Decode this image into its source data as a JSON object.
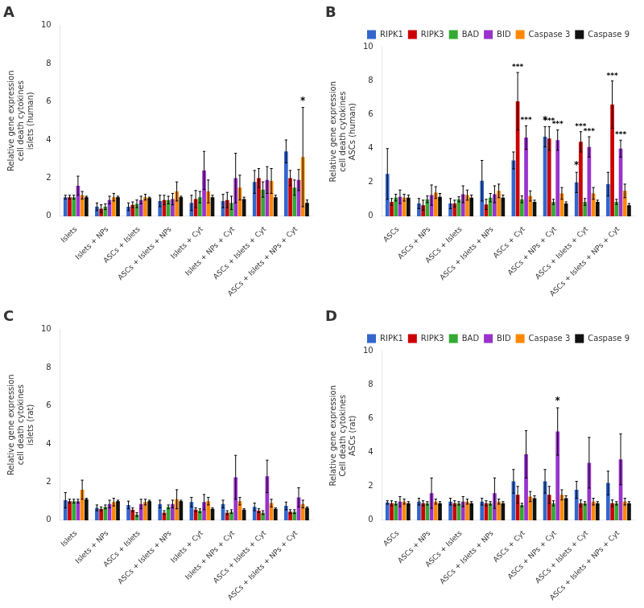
{
  "chart_data": [
    {
      "type": "bar",
      "title": "A",
      "ylabel": "Relative gene expression\ncell death cytokines\nislets (human)",
      "ylim": [
        0,
        10
      ],
      "yticks": [
        0,
        2,
        4,
        6,
        8,
        10
      ],
      "grid": false,
      "categories": [
        "Islets",
        "Islets + NPs",
        "ASCs + Islets",
        "ASCs + Islets + NPs",
        "Islets + Cyt",
        "Islets + NPs + Cyt",
        "ASCs + Islets + Cyt",
        "ASCs + Islets + NPs + Cyt"
      ],
      "series": [
        {
          "name": "RIPK1",
          "color": "#3366cc",
          "values": [
            1.0,
            0.5,
            0.5,
            0.8,
            0.7,
            0.8,
            1.8,
            3.4
          ],
          "errors": [
            0.1,
            0.2,
            0.2,
            0.3,
            0.4,
            0.35,
            0.6,
            0.6
          ]
        },
        {
          "name": "RIPK3",
          "color": "#cc0000",
          "values": [
            1.0,
            0.4,
            0.6,
            0.85,
            0.9,
            0.85,
            2.0,
            2.0
          ],
          "errors": [
            0.1,
            0.2,
            0.15,
            0.25,
            0.45,
            0.4,
            0.5,
            0.4
          ]
        },
        {
          "name": "BAD",
          "color": "#33aa33",
          "values": [
            1.0,
            0.5,
            0.65,
            0.85,
            1.0,
            0.7,
            1.4,
            1.5
          ],
          "errors": [
            0.1,
            0.15,
            0.2,
            0.2,
            0.3,
            0.35,
            0.4,
            0.4
          ]
        },
        {
          "name": "BID",
          "color": "#9933cc",
          "values": [
            1.6,
            0.85,
            0.85,
            0.9,
            2.4,
            2.0,
            1.9,
            1.9
          ],
          "errors": [
            0.5,
            0.2,
            0.2,
            0.3,
            1.0,
            1.3,
            0.7,
            0.55
          ]
        },
        {
          "name": "Caspase 3",
          "color": "#ff8800",
          "values": [
            1.1,
            1.0,
            1.0,
            1.3,
            1.3,
            1.5,
            1.85,
            3.1
          ],
          "errors": [
            0.2,
            0.2,
            0.15,
            0.5,
            0.6,
            0.65,
            0.65,
            2.6
          ]
        },
        {
          "name": "Caspase 9",
          "color": "#111111",
          "values": [
            1.0,
            1.0,
            0.95,
            1.0,
            1.0,
            0.9,
            1.0,
            0.7
          ],
          "errors": [
            0.05,
            0.05,
            0.05,
            0.05,
            0.1,
            0.1,
            0.1,
            0.15
          ]
        }
      ],
      "annotations": [
        {
          "text": "*",
          "series": "Caspase 3",
          "category": "ASCs + Islets + NPs + Cyt"
        }
      ]
    },
    {
      "type": "bar",
      "title": "B",
      "ylabel": "Relative gene expression\ncell death cytokines\nASCs (human)",
      "ylim": [
        0,
        10
      ],
      "yticks": [
        0,
        2,
        4,
        6,
        8,
        10
      ],
      "grid": false,
      "legend": "upper right",
      "categories": [
        "ASCs",
        "ASCs + NPs",
        "ASCs + Islets",
        "ASCs + Islets + NPs",
        "ASCs + Cyt",
        "ASCs + NPs + Cyt",
        "ASCs + Islets + Cyt",
        "ASCs + Islets + NPs + Cyt"
      ],
      "series": [
        {
          "name": "RIPK1",
          "color": "#3366cc",
          "values": [
            2.5,
            0.75,
            0.75,
            2.1,
            3.3,
            4.7,
            2.0,
            1.9
          ],
          "errors": [
            1.5,
            0.3,
            0.3,
            1.2,
            0.5,
            0.6,
            0.6,
            0.7
          ]
        },
        {
          "name": "RIPK3",
          "color": "#cc0000",
          "values": [
            0.85,
            0.65,
            0.75,
            0.7,
            6.8,
            4.6,
            4.4,
            6.6
          ],
          "errors": [
            0.2,
            0.3,
            0.2,
            0.3,
            1.7,
            0.7,
            0.6,
            1.4
          ]
        },
        {
          "name": "BAD",
          "color": "#33aa33",
          "values": [
            1.1,
            1.0,
            1.0,
            1.1,
            1.0,
            0.85,
            0.85,
            0.85
          ],
          "errors": [
            0.2,
            0.2,
            0.15,
            0.25,
            0.2,
            0.15,
            0.2,
            0.15
          ]
        },
        {
          "name": "BID",
          "color": "#9933cc",
          "values": [
            1.15,
            1.25,
            1.3,
            1.3,
            4.65,
            4.5,
            4.1,
            4.0
          ],
          "errors": [
            0.4,
            0.6,
            0.5,
            0.5,
            0.7,
            0.6,
            0.6,
            0.5
          ]
        },
        {
          "name": "Caspase 3",
          "color": "#ff8800",
          "values": [
            1.1,
            1.4,
            1.25,
            1.5,
            1.2,
            1.35,
            1.35,
            1.5
          ],
          "errors": [
            0.2,
            0.35,
            0.3,
            0.4,
            0.3,
            0.35,
            0.35,
            0.4
          ]
        },
        {
          "name": "Caspase 9",
          "color": "#111111",
          "values": [
            1.1,
            1.15,
            1.1,
            1.1,
            0.85,
            0.75,
            0.85,
            0.65
          ],
          "errors": [
            0.15,
            0.2,
            0.15,
            0.15,
            0.1,
            0.1,
            0.1,
            0.1
          ]
        }
      ],
      "annotations": [
        {
          "text": "***",
          "series": "RIPK3",
          "category": "ASCs + Cyt"
        },
        {
          "text": "***",
          "series": "BID",
          "category": "ASCs + Cyt"
        },
        {
          "text": "*",
          "series": "RIPK1",
          "category": "ASCs + NPs + Cyt"
        },
        {
          "text": "***",
          "series": "RIPK3",
          "category": "ASCs + NPs + Cyt"
        },
        {
          "text": "***",
          "series": "BID",
          "category": "ASCs + NPs + Cyt"
        },
        {
          "text": "*",
          "series": "RIPK1",
          "category": "ASCs + Islets + Cyt"
        },
        {
          "text": "***",
          "series": "RIPK3",
          "category": "ASCs + Islets + Cyt"
        },
        {
          "text": "***",
          "series": "BID",
          "category": "ASCs + Islets + Cyt"
        },
        {
          "text": "***",
          "series": "RIPK3",
          "category": "ASCs + Islets + NPs + Cyt"
        },
        {
          "text": "***",
          "series": "BID",
          "category": "ASCs + Islets + NPs + Cyt"
        }
      ]
    },
    {
      "type": "bar",
      "title": "C",
      "ylabel": "Relative gene expression\ncell death cytokines\nislets (rat)",
      "ylim": [
        0,
        10
      ],
      "yticks": [
        0,
        2,
        4,
        6,
        8,
        10
      ],
      "grid": false,
      "categories": [
        "Islets",
        "Islets + NPs",
        "ASCs + Islets",
        "ASCs + Islets + NPs",
        "Islets + Cyt",
        "Islets + NPs + Cyt",
        "ASCs + Islets + Cyt",
        "ASCs + Islets + NPs + Cyt"
      ],
      "series": [
        {
          "name": "RIPK1",
          "color": "#3366cc",
          "values": [
            1.05,
            0.65,
            0.8,
            0.85,
            0.95,
            0.85,
            0.7,
            0.75
          ],
          "errors": [
            0.4,
            0.15,
            0.2,
            0.2,
            0.25,
            0.2,
            0.2,
            0.2
          ]
        },
        {
          "name": "RIPK3",
          "color": "#cc0000",
          "values": [
            1.0,
            0.6,
            0.55,
            0.4,
            0.55,
            0.4,
            0.5,
            0.45
          ],
          "errors": [
            0.1,
            0.1,
            0.1,
            0.1,
            0.1,
            0.1,
            0.1,
            0.1
          ]
        },
        {
          "name": "BAD",
          "color": "#33aa33",
          "values": [
            1.0,
            0.7,
            0.3,
            0.7,
            0.5,
            0.45,
            0.4,
            0.45
          ],
          "errors": [
            0.1,
            0.1,
            0.1,
            0.1,
            0.1,
            0.1,
            0.1,
            0.1
          ]
        },
        {
          "name": "BID",
          "color": "#9933cc",
          "values": [
            1.0,
            0.85,
            0.85,
            0.85,
            0.95,
            2.25,
            2.3,
            1.2
          ],
          "errors": [
            0.1,
            0.2,
            0.25,
            0.2,
            0.4,
            1.15,
            0.85,
            0.5
          ]
        },
        {
          "name": "Caspase 3",
          "color": "#ff8800",
          "values": [
            1.6,
            0.95,
            0.95,
            1.1,
            1.0,
            1.0,
            0.9,
            0.85
          ],
          "errors": [
            0.5,
            0.2,
            0.15,
            0.5,
            0.2,
            0.2,
            0.2,
            0.2
          ]
        },
        {
          "name": "Caspase 9",
          "color": "#111111",
          "values": [
            1.1,
            1.0,
            1.0,
            1.0,
            0.6,
            0.55,
            0.6,
            0.65
          ],
          "errors": [
            0.05,
            0.05,
            0.05,
            0.05,
            0.05,
            0.05,
            0.05,
            0.05
          ]
        }
      ]
    },
    {
      "type": "bar",
      "title": "D",
      "ylabel": "Relative gene expression\nCell death cytokines\nASCs (rat)",
      "ylim": [
        0,
        10
      ],
      "yticks": [
        0,
        2,
        4,
        6,
        8,
        10
      ],
      "grid": false,
      "legend": "upper right",
      "categories": [
        "ASCs",
        "ASCs + NPs",
        "ASCs + Islets",
        "ASCs + Islets + NPs",
        "ASCs + Cyt",
        "ASCs + NPs + Cyt",
        "ASCs + Islets + Cyt",
        "ASCs + Islets + NPs + Cyt"
      ],
      "series": [
        {
          "name": "RIPK1",
          "color": "#3366cc",
          "values": [
            1.05,
            1.1,
            1.1,
            1.1,
            2.3,
            2.3,
            1.8,
            2.2
          ],
          "errors": [
            0.1,
            0.2,
            0.2,
            0.2,
            0.7,
            0.7,
            0.5,
            0.7
          ]
        },
        {
          "name": "RIPK3",
          "color": "#cc0000",
          "values": [
            1.0,
            1.0,
            1.0,
            1.0,
            1.5,
            1.5,
            1.0,
            1.0
          ],
          "errors": [
            0.15,
            0.15,
            0.15,
            0.15,
            0.5,
            0.5,
            0.2,
            0.2
          ]
        },
        {
          "name": "BAD",
          "color": "#33aa33",
          "values": [
            1.0,
            1.0,
            1.0,
            1.0,
            0.9,
            1.0,
            1.0,
            1.0
          ],
          "errors": [
            0.1,
            0.1,
            0.1,
            0.1,
            0.1,
            0.15,
            0.1,
            0.1
          ]
        },
        {
          "name": "BID",
          "color": "#9933cc",
          "values": [
            1.1,
            1.6,
            1.1,
            1.6,
            3.9,
            5.25,
            3.4,
            3.6
          ],
          "errors": [
            0.3,
            0.9,
            0.3,
            0.9,
            1.4,
            1.4,
            1.5,
            1.5
          ]
        },
        {
          "name": "Caspase 3",
          "color": "#ff8800",
          "values": [
            1.1,
            1.1,
            1.1,
            1.1,
            1.4,
            1.5,
            1.1,
            1.1
          ],
          "errors": [
            0.15,
            0.15,
            0.15,
            0.15,
            0.3,
            0.3,
            0.2,
            0.2
          ]
        },
        {
          "name": "Caspase 9",
          "color": "#111111",
          "values": [
            1.0,
            1.0,
            1.0,
            1.0,
            1.3,
            1.3,
            1.0,
            1.0
          ],
          "errors": [
            0.1,
            0.1,
            0.1,
            0.1,
            0.15,
            0.15,
            0.1,
            0.1
          ]
        }
      ],
      "annotations": [
        {
          "text": "*",
          "series": "BID",
          "category": "ASCs + NPs + Cyt"
        }
      ]
    }
  ]
}
